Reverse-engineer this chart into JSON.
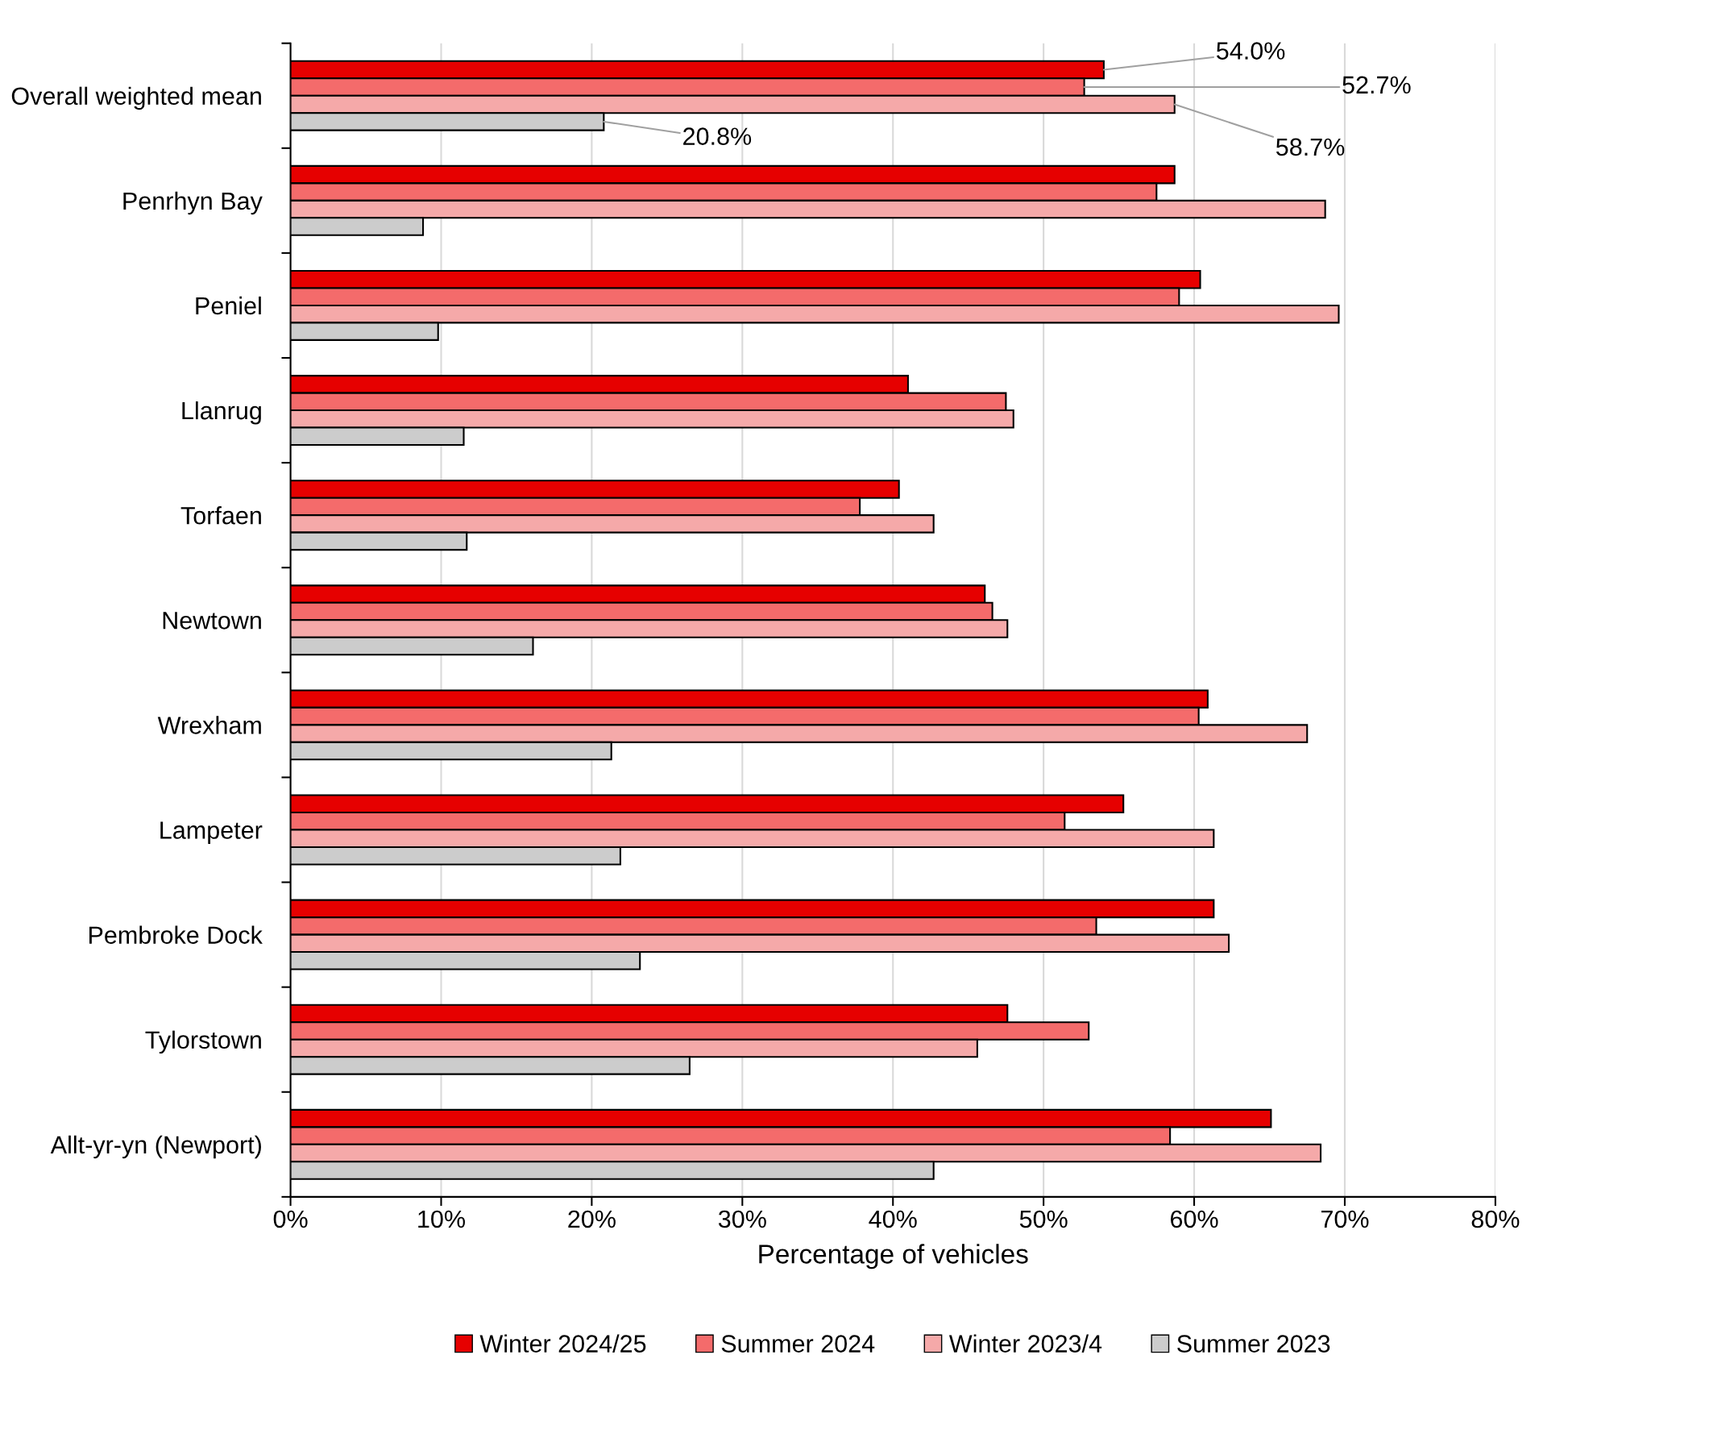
{
  "chart_data": {
    "type": "bar",
    "orientation": "horizontal",
    "xlabel": "Percentage of vehicles",
    "categories": [
      "Overall weighted mean",
      "Penrhyn Bay",
      "Peniel",
      "Llanrug",
      "Torfaen",
      "Newtown",
      "Wrexham",
      "Lampeter",
      "Pembroke Dock",
      "Tylorstown",
      "Allt-yr-yn (Newport)"
    ],
    "series": [
      {
        "name": "Winter 2024/25",
        "color": "#e60000",
        "values": [
          54.0,
          58.7,
          60.4,
          41.0,
          40.4,
          46.1,
          60.9,
          55.3,
          61.3,
          47.6,
          65.1
        ],
        "value_labels": [
          "54.0%",
          null,
          null,
          null,
          null,
          null,
          null,
          null,
          null,
          null,
          null
        ]
      },
      {
        "name": "Summer 2024",
        "color": "#f46b6b",
        "values": [
          52.7,
          57.5,
          59.0,
          47.5,
          37.8,
          46.6,
          60.3,
          51.4,
          53.5,
          53.0,
          58.4
        ],
        "value_labels": [
          "52.7%",
          null,
          null,
          null,
          null,
          null,
          null,
          null,
          null,
          null,
          null
        ]
      },
      {
        "name": "Winter 2023/4",
        "color": "#f5a9a9",
        "values": [
          58.7,
          68.7,
          69.6,
          48.0,
          42.7,
          47.6,
          67.5,
          61.3,
          62.3,
          45.6,
          68.4
        ],
        "value_labels": [
          "58.7%",
          null,
          null,
          null,
          null,
          null,
          null,
          null,
          null,
          null,
          null
        ]
      },
      {
        "name": "Summer 2023",
        "color": "#cccccc",
        "values": [
          20.8,
          8.8,
          9.8,
          11.5,
          11.7,
          16.1,
          21.3,
          21.9,
          23.2,
          26.5,
          42.7
        ],
        "value_labels": [
          "20.8%",
          null,
          null,
          null,
          null,
          null,
          null,
          null,
          null,
          null,
          null
        ]
      }
    ],
    "xlim": [
      0,
      80
    ],
    "xticks": [
      {
        "value": 0,
        "label": "0%"
      },
      {
        "value": 10,
        "label": "10%"
      },
      {
        "value": 20,
        "label": "20%"
      },
      {
        "value": 30,
        "label": "30%"
      },
      {
        "value": 40,
        "label": "40%"
      },
      {
        "value": 50,
        "label": "50%"
      },
      {
        "value": 60,
        "label": "60%"
      },
      {
        "value": 70,
        "label": "70%"
      },
      {
        "value": 80,
        "label": "80%"
      }
    ],
    "grid": "x",
    "legend": "bottom"
  }
}
